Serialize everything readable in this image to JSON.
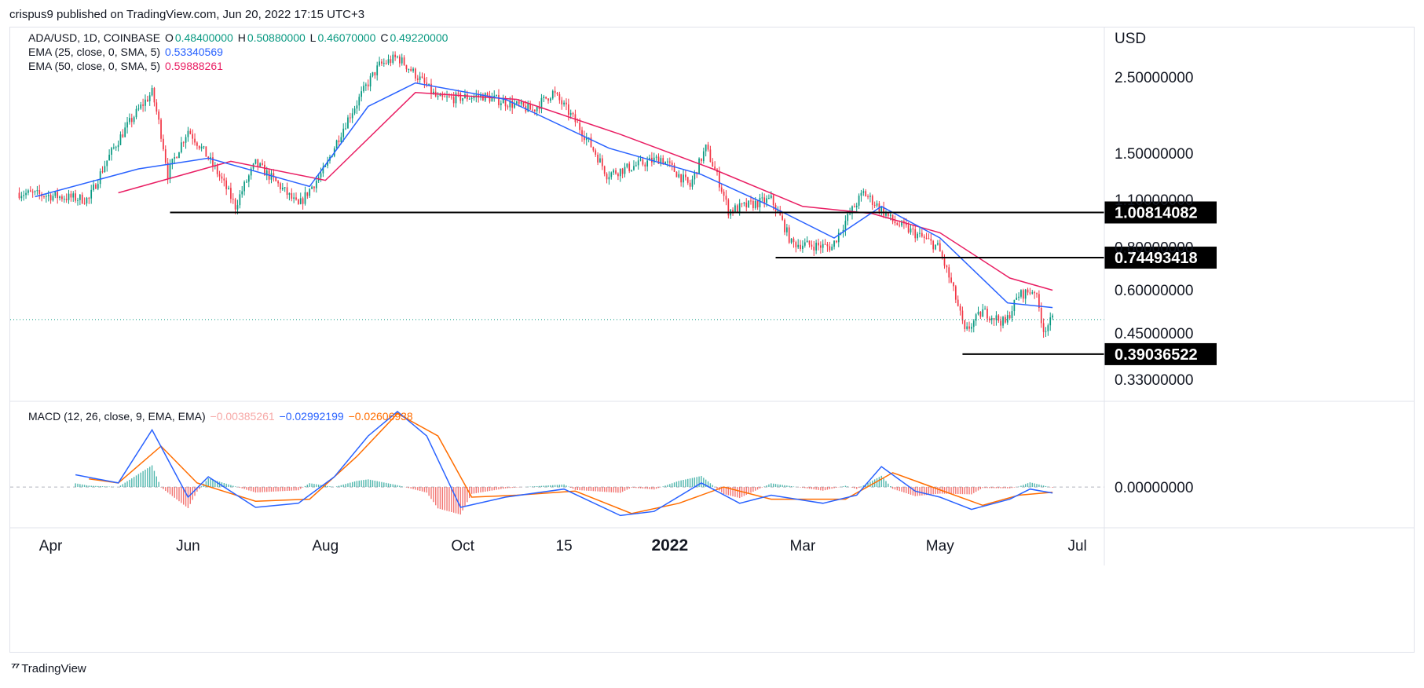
{
  "attribution": "crispus9 published on TradingView.com, Jun 20, 2022 17:15 UTC+3",
  "footer": {
    "logo_icon": "tradingview-logo-icon",
    "brand": "TradingView"
  },
  "legend": {
    "symbol": "ADA/USD, 1D, COINBASE",
    "open_label": "O",
    "open": "0.48400000",
    "high_label": "H",
    "high": "0.50880000",
    "low_label": "L",
    "low": "0.46070000",
    "close_label": "C",
    "close": "0.49220000",
    "ema25_label": "EMA (25, close, 0, SMA, 5)",
    "ema25_value": "0.53340569",
    "ema50_label": "EMA (50, close, 0, SMA, 5)",
    "ema50_value": "0.59888261",
    "macd_label": "MACD (12, 26, close, 9, EMA, EMA)",
    "macd_hist": "−0.00385261",
    "macd_value": "−0.02992199",
    "macd_signal": "−0.02606938"
  },
  "colors": {
    "up": "#089981",
    "down": "#f23645",
    "ema25": "#2962ff",
    "ema50": "#e91e63",
    "macd": "#2962ff",
    "signal": "#ff6d00",
    "level": "#000000"
  },
  "chart_data": [
    {
      "type": "candlestick",
      "axis_unit": "USD",
      "y_scale": "log",
      "ylim": [
        0.3,
        3.3
      ],
      "y_ticks": [
        "2.50000000",
        "1.50000000",
        "1.10000000",
        "0.80000000",
        "0.60000000",
        "0.45000000",
        "0.33000000"
      ],
      "y_tick_values": [
        2.5,
        1.5,
        1.1,
        0.8,
        0.6,
        0.45,
        0.33
      ],
      "x_ticks": [
        "Apr",
        "Jun",
        "Aug",
        "Oct",
        "15",
        "2022",
        "Mar",
        "May",
        "Jul"
      ],
      "x_tick_dates": [
        "2021-04-01",
        "2021-06-01",
        "2021-08-01",
        "2021-10-01",
        "2021-11-15",
        "2022-01-01",
        "2022-03-01",
        "2022-05-01",
        "2022-07-01"
      ],
      "x_range": [
        "2021-03-14",
        "2022-07-13"
      ],
      "last_close": 0.4922,
      "key_prices": [
        {
          "date": "2021-03-18",
          "close": 1.15
        },
        {
          "date": "2021-04-18",
          "close": 1.1
        },
        {
          "date": "2021-05-16",
          "close": 2.25
        },
        {
          "date": "2021-05-23",
          "close": 1.3
        },
        {
          "date": "2021-06-01",
          "close": 1.75
        },
        {
          "date": "2021-06-22",
          "close": 1.05
        },
        {
          "date": "2021-07-01",
          "close": 1.4
        },
        {
          "date": "2021-07-20",
          "close": 1.05
        },
        {
          "date": "2021-08-01",
          "close": 1.35
        },
        {
          "date": "2021-08-15",
          "close": 2.1
        },
        {
          "date": "2021-08-25",
          "close": 2.7
        },
        {
          "date": "2021-09-02",
          "close": 2.85
        },
        {
          "date": "2021-09-20",
          "close": 2.15
        },
        {
          "date": "2021-10-10",
          "close": 2.2
        },
        {
          "date": "2021-11-01",
          "close": 2.0
        },
        {
          "date": "2021-11-10",
          "close": 2.25
        },
        {
          "date": "2021-12-04",
          "close": 1.3
        },
        {
          "date": "2021-12-28",
          "close": 1.45
        },
        {
          "date": "2022-01-10",
          "close": 1.2
        },
        {
          "date": "2022-01-17",
          "close": 1.55
        },
        {
          "date": "2022-01-27",
          "close": 1.02
        },
        {
          "date": "2022-02-15",
          "close": 1.1
        },
        {
          "date": "2022-02-24",
          "close": 0.82
        },
        {
          "date": "2022-03-14",
          "close": 0.8
        },
        {
          "date": "2022-03-28",
          "close": 1.15
        },
        {
          "date": "2022-04-10",
          "close": 0.95
        },
        {
          "date": "2022-04-30",
          "close": 0.8
        },
        {
          "date": "2022-05-12",
          "close": 0.45
        },
        {
          "date": "2022-05-20",
          "close": 0.52
        },
        {
          "date": "2022-05-30",
          "close": 0.48
        },
        {
          "date": "2022-06-05",
          "close": 0.58
        },
        {
          "date": "2022-06-12",
          "close": 0.6
        },
        {
          "date": "2022-06-16",
          "close": 0.46
        },
        {
          "date": "2022-06-20",
          "close": 0.4922
        }
      ],
      "ema25_points": [
        {
          "date": "2021-03-25",
          "value": 1.12
        },
        {
          "date": "2021-05-10",
          "value": 1.35
        },
        {
          "date": "2021-06-10",
          "value": 1.45
        },
        {
          "date": "2021-07-25",
          "value": 1.2
        },
        {
          "date": "2021-08-20",
          "value": 2.05
        },
        {
          "date": "2021-09-10",
          "value": 2.4
        },
        {
          "date": "2021-10-20",
          "value": 2.15
        },
        {
          "date": "2021-12-05",
          "value": 1.55
        },
        {
          "date": "2022-01-15",
          "value": 1.3
        },
        {
          "date": "2022-02-15",
          "value": 1.05
        },
        {
          "date": "2022-03-15",
          "value": 0.85
        },
        {
          "date": "2022-04-05",
          "value": 1.05
        },
        {
          "date": "2022-05-01",
          "value": 0.85
        },
        {
          "date": "2022-05-31",
          "value": 0.55
        },
        {
          "date": "2022-06-20",
          "value": 0.5334
        }
      ],
      "ema50_points": [
        {
          "date": "2021-05-01",
          "value": 1.15
        },
        {
          "date": "2021-06-20",
          "value": 1.42
        },
        {
          "date": "2021-08-01",
          "value": 1.25
        },
        {
          "date": "2021-09-10",
          "value": 2.25
        },
        {
          "date": "2021-10-25",
          "value": 2.15
        },
        {
          "date": "2021-12-10",
          "value": 1.7
        },
        {
          "date": "2022-01-20",
          "value": 1.35
        },
        {
          "date": "2022-03-01",
          "value": 1.05
        },
        {
          "date": "2022-04-01",
          "value": 1.0
        },
        {
          "date": "2022-05-01",
          "value": 0.88
        },
        {
          "date": "2022-06-01",
          "value": 0.65
        },
        {
          "date": "2022-06-20",
          "value": 0.5989
        }
      ],
      "levels": [
        {
          "price": 1.00814082,
          "label": "1.00814082",
          "from": "2021-05-24"
        },
        {
          "price": 0.74493418,
          "label": "0.74493418",
          "from": "2022-02-17"
        },
        {
          "price": 0.39036522,
          "label": "0.39036522",
          "from": "2022-05-11"
        }
      ]
    },
    {
      "type": "macd",
      "y_ticks": [
        "0.00000000"
      ],
      "ylim": [
        -0.2,
        0.42
      ],
      "macd_points": [
        {
          "date": "2021-04-12",
          "value": 0.06
        },
        {
          "date": "2021-05-01",
          "value": 0.02
        },
        {
          "date": "2021-05-16",
          "value": 0.28
        },
        {
          "date": "2021-06-01",
          "value": -0.05
        },
        {
          "date": "2021-06-10",
          "value": 0.05
        },
        {
          "date": "2021-07-01",
          "value": -0.1
        },
        {
          "date": "2021-07-20",
          "value": -0.08
        },
        {
          "date": "2021-08-05",
          "value": 0.05
        },
        {
          "date": "2021-08-20",
          "value": 0.25
        },
        {
          "date": "2021-09-02",
          "value": 0.37
        },
        {
          "date": "2021-09-15",
          "value": 0.25
        },
        {
          "date": "2021-09-30",
          "value": -0.1
        },
        {
          "date": "2021-10-20",
          "value": -0.05
        },
        {
          "date": "2021-11-15",
          "value": -0.01
        },
        {
          "date": "2021-12-10",
          "value": -0.14
        },
        {
          "date": "2021-12-25",
          "value": -0.12
        },
        {
          "date": "2022-01-15",
          "value": 0.02
        },
        {
          "date": "2022-02-01",
          "value": -0.08
        },
        {
          "date": "2022-02-15",
          "value": -0.04
        },
        {
          "date": "2022-03-10",
          "value": -0.08
        },
        {
          "date": "2022-03-25",
          "value": -0.04
        },
        {
          "date": "2022-04-05",
          "value": 0.1
        },
        {
          "date": "2022-04-20",
          "value": -0.02
        },
        {
          "date": "2022-05-01",
          "value": -0.05
        },
        {
          "date": "2022-05-15",
          "value": -0.11
        },
        {
          "date": "2022-06-01",
          "value": -0.06
        },
        {
          "date": "2022-06-10",
          "value": -0.01
        },
        {
          "date": "2022-06-20",
          "value": -0.0299
        }
      ],
      "signal_points": [
        {
          "date": "2021-04-18",
          "value": 0.04
        },
        {
          "date": "2021-05-01",
          "value": 0.02
        },
        {
          "date": "2021-05-20",
          "value": 0.2
        },
        {
          "date": "2021-06-05",
          "value": 0.02
        },
        {
          "date": "2021-07-01",
          "value": -0.07
        },
        {
          "date": "2021-07-25",
          "value": -0.06
        },
        {
          "date": "2021-08-15",
          "value": 0.15
        },
        {
          "date": "2021-09-02",
          "value": 0.36
        },
        {
          "date": "2021-09-20",
          "value": 0.25
        },
        {
          "date": "2021-10-05",
          "value": -0.05
        },
        {
          "date": "2021-10-25",
          "value": -0.04
        },
        {
          "date": "2021-11-20",
          "value": -0.02
        },
        {
          "date": "2021-12-15",
          "value": -0.13
        },
        {
          "date": "2022-01-05",
          "value": -0.08
        },
        {
          "date": "2022-01-25",
          "value": 0.0
        },
        {
          "date": "2022-02-15",
          "value": -0.06
        },
        {
          "date": "2022-03-20",
          "value": -0.06
        },
        {
          "date": "2022-04-10",
          "value": 0.07
        },
        {
          "date": "2022-04-25",
          "value": 0.01
        },
        {
          "date": "2022-05-20",
          "value": -0.09
        },
        {
          "date": "2022-06-05",
          "value": -0.04
        },
        {
          "date": "2022-06-20",
          "value": -0.0261
        }
      ]
    }
  ]
}
